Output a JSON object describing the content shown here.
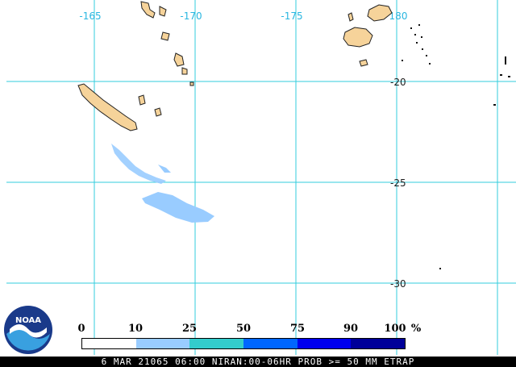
{
  "map": {
    "lon_labels": [
      "-165",
      "-170",
      "-175",
      "180"
    ],
    "lat_labels": [
      "-20",
      "-25",
      "-30"
    ],
    "colors": {
      "gridline": "#33ccdd",
      "land": "#f6d39a",
      "coast": "#222222",
      "prob_light": "#99ccff"
    }
  },
  "legend": {
    "ticks": [
      "0",
      "10",
      "25",
      "50",
      "75",
      "90",
      "100"
    ],
    "unit": "%",
    "colors": [
      "#ffffff",
      "#99ccff",
      "#33cccc",
      "#0066ff",
      "#0000ee",
      "#000099"
    ]
  },
  "caption": "6 MAR 21065 06:00 NIRAN:00-06HR PROB >= 50 MM ETRAP",
  "logo": {
    "text": "NOAA",
    "icon": "noaa-logo-icon"
  }
}
